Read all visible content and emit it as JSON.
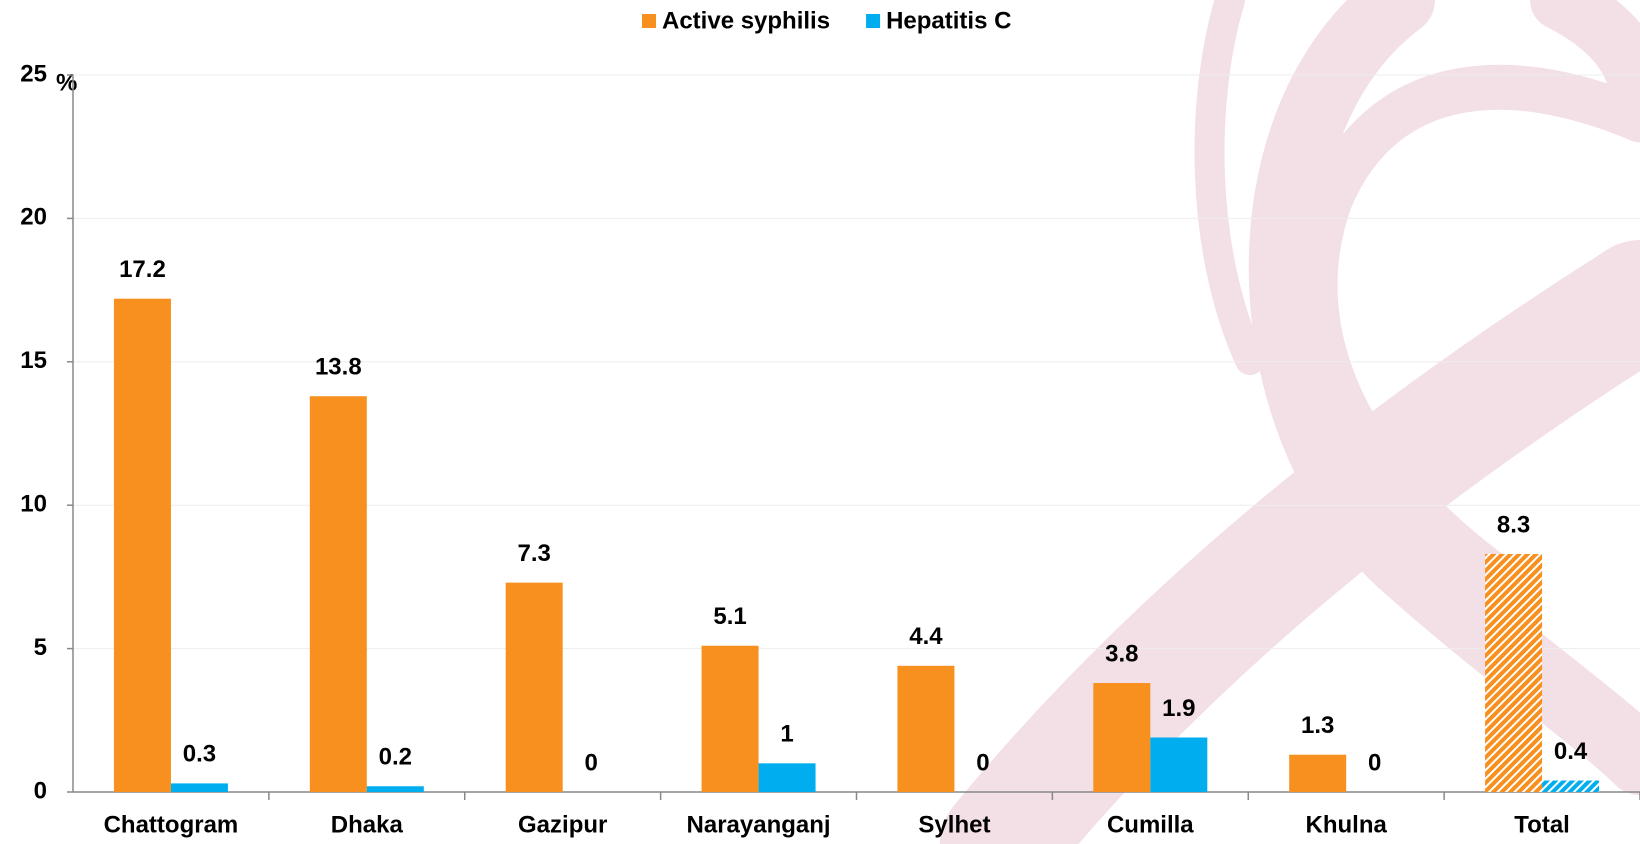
{
  "chart_data": {
    "type": "bar",
    "categories": [
      "Chattogram",
      "Dhaka",
      "Gazipur",
      "Narayanganj",
      "Sylhet",
      "Cumilla",
      "Khulna",
      "Total"
    ],
    "series": [
      {
        "name": "Active syphilis",
        "color": "#f7901e",
        "values": [
          17.2,
          13.8,
          7.3,
          5.1,
          4.4,
          3.8,
          1.3,
          8.3
        ]
      },
      {
        "name": "Hepatitis C",
        "color": "#00aeef",
        "values": [
          0.3,
          0.2,
          0,
          1,
          0,
          1.9,
          0,
          0.4
        ]
      }
    ],
    "hatched": [
      false,
      false,
      false,
      false,
      false,
      false,
      false,
      true
    ],
    "y_unit": "%",
    "ylim": [
      0,
      25
    ],
    "yticks": [
      0,
      5,
      10,
      15,
      20,
      25
    ],
    "grid": true,
    "legend": "top"
  }
}
